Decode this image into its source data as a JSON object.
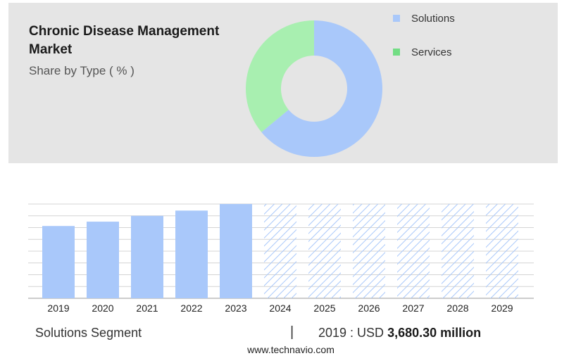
{
  "header": {
    "title": "Chronic Disease Management Market",
    "subtitle": "Share by Type ( % )"
  },
  "legend": [
    {
      "label": "Solutions",
      "color": "#a9c8fa"
    },
    {
      "label": "Services",
      "color": "#a8efb0"
    }
  ],
  "footer": {
    "segment_label": "Solutions Segment",
    "separator": "|",
    "year_prefix": "2019 : USD",
    "value": "3,680.30 million",
    "source": "www.technavio.com"
  },
  "colors": {
    "solutions": "#a9c8fa",
    "services": "#a8efb0",
    "forecast_hatch": "#a9c8fa",
    "panel": "#e5e5e5"
  },
  "chart_data": [
    {
      "type": "pie",
      "title": "Share by Type ( % )",
      "donut": true,
      "series": [
        {
          "name": "Solutions",
          "value": 64
        },
        {
          "name": "Services",
          "value": 36
        }
      ]
    },
    {
      "type": "bar",
      "categories": [
        "2019",
        "2020",
        "2021",
        "2022",
        "2023",
        "2024",
        "2025",
        "2026",
        "2027",
        "2028",
        "2029"
      ],
      "values": [
        3680.3,
        3902,
        4198,
        4465,
        4800,
        null,
        null,
        null,
        null,
        null,
        null
      ],
      "forecast": [
        false,
        false,
        false,
        false,
        false,
        true,
        true,
        true,
        true,
        true,
        true
      ],
      "ylim": [
        0,
        4800
      ],
      "grid": true
    }
  ]
}
